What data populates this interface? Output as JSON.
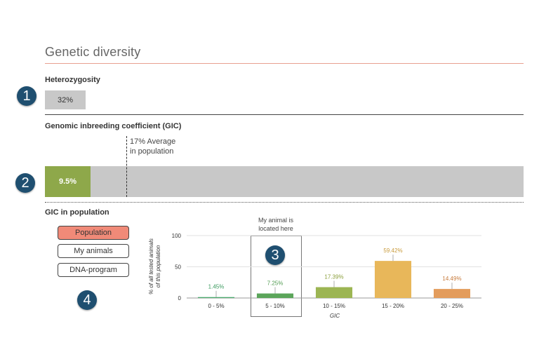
{
  "section": {
    "title": "Genetic diversity"
  },
  "heterozygosity": {
    "label": "Heterozygosity",
    "value": "32%",
    "level": 0.32
  },
  "gic": {
    "label": "Genomic inbreeding coefficient (GIC)",
    "value": "9.5%",
    "level": 0.095,
    "average_line1": "17% Average",
    "average_line2": "in population"
  },
  "population": {
    "label": "GIC in population",
    "toggles": [
      "Population",
      "My animals",
      "DNA-program"
    ],
    "active_toggle": "Population",
    "note_line1": "My animal is",
    "note_line2": "located here"
  },
  "badges": [
    "1",
    "2",
    "3",
    "4"
  ],
  "colors": {
    "accent": "#f08a78",
    "gic_fill": "#8ea84a",
    "badge": "#1f4f70",
    "track": "#c8c8c8"
  },
  "chart_data": {
    "type": "bar",
    "categories": [
      "0 - 5%",
      "5 - 10%",
      "10 - 15%",
      "15 - 20%",
      "20 - 25%"
    ],
    "values": [
      1.45,
      7.25,
      17.39,
      59.42,
      14.49
    ],
    "data_labels": [
      "1.45%",
      "7.25%",
      "17.39%",
      "59.42%",
      "14.49%"
    ],
    "colors": [
      "#4aa96c",
      "#5ba55a",
      "#9cb553",
      "#e8b75a",
      "#e39c5c"
    ],
    "label_colors": [
      "#3a9a5e",
      "#4f9a4f",
      "#8a9e3a",
      "#c89a3a",
      "#c77a3a"
    ],
    "xlabel": "GIC",
    "ylabel_line1": "% of all tested animals",
    "ylabel_line2": "of this population",
    "yticks": [
      "0",
      "50",
      "100"
    ],
    "ylim": [
      0,
      100
    ],
    "highlight_category": "5 - 10%"
  }
}
